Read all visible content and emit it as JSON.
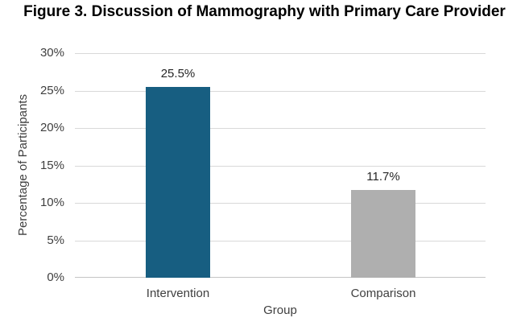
{
  "chart_data": {
    "type": "bar",
    "title": "Figure 3. Discussion of Mammography with Primary Care Provider",
    "categories": [
      "Intervention",
      "Comparison"
    ],
    "values": [
      25.5,
      11.7
    ],
    "value_labels": [
      "25.5%",
      "11.7%"
    ],
    "bar_colors": [
      "#175E81",
      "#AFAFAF"
    ],
    "xlabel": "Group",
    "ylabel": "Percentage of Participants",
    "ylim": [
      0,
      30
    ],
    "ytick_step": 5,
    "yticks": [
      0,
      5,
      10,
      15,
      20,
      25,
      30
    ],
    "ytick_labels": [
      "0%",
      "5%",
      "10%",
      "15%",
      "20%",
      "25%",
      "30%"
    ],
    "grid": true,
    "legend_position": "none",
    "colors": {
      "grid": "#D9D9D9",
      "axis_line": "#C4C4C4",
      "axis_text": "#3F3F3F",
      "data_label_text": "#262626",
      "title_text": "#000000",
      "background": "#FFFFFF"
    }
  }
}
